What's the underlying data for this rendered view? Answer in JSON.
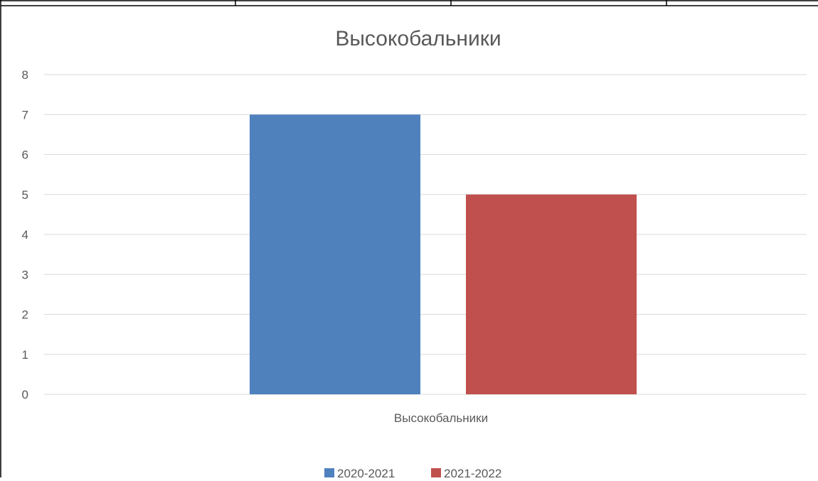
{
  "chart_data": {
    "type": "bar",
    "title": "Высокобальники",
    "categories": [
      "Высокобальники"
    ],
    "series": [
      {
        "name": "2020-2021",
        "values": [
          7
        ],
        "color": "#4F81BD"
      },
      {
        "name": "2021-2022",
        "values": [
          5
        ],
        "color": "#C0504D"
      }
    ],
    "ylim": [
      0,
      8
    ],
    "yticks": [
      0,
      1,
      2,
      3,
      4,
      5,
      6,
      7,
      8
    ],
    "grid": true,
    "legend": "bottom"
  }
}
